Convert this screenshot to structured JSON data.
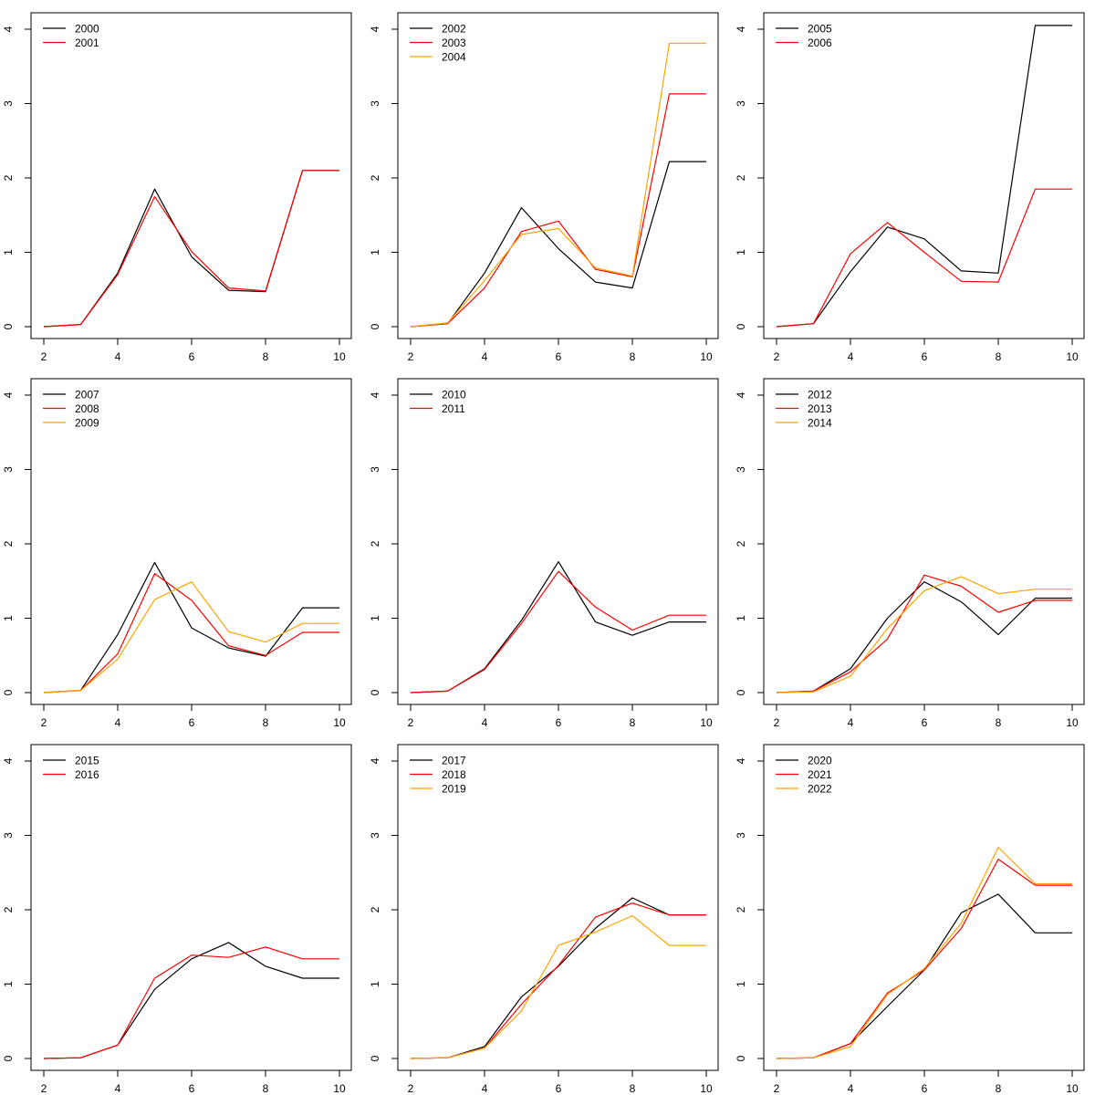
{
  "chart_data": [
    {
      "type": "line",
      "x": [
        2,
        3,
        4,
        5,
        6,
        7,
        8,
        9,
        10
      ],
      "xlim": [
        2,
        10
      ],
      "ylim": [
        0,
        4
      ],
      "xticks": [
        2,
        4,
        6,
        8,
        10
      ],
      "yticks": [
        0,
        1,
        2,
        3,
        4
      ],
      "legend_position": "top-left",
      "series": [
        {
          "name": "2000",
          "color": "#000000",
          "values": [
            0,
            0.03,
            0.72,
            1.85,
            0.94,
            0.49,
            0.47,
            2.1,
            2.1
          ]
        },
        {
          "name": "2001",
          "color": "#ff0000",
          "values": [
            0,
            0.03,
            0.7,
            1.75,
            1.01,
            0.52,
            0.48,
            2.1,
            2.1
          ]
        }
      ]
    },
    {
      "type": "line",
      "x": [
        2,
        3,
        4,
        5,
        6,
        7,
        8,
        9,
        10
      ],
      "xlim": [
        2,
        10
      ],
      "ylim": [
        0,
        4
      ],
      "xticks": [
        2,
        4,
        6,
        8,
        10
      ],
      "yticks": [
        0,
        1,
        2,
        3,
        4
      ],
      "legend_position": "top-left",
      "series": [
        {
          "name": "2002",
          "color": "#000000",
          "values": [
            0,
            0.04,
            0.72,
            1.6,
            1.05,
            0.6,
            0.52,
            2.22,
            2.22
          ]
        },
        {
          "name": "2003",
          "color": "#ff0000",
          "values": [
            0,
            0.04,
            0.52,
            1.28,
            1.42,
            0.77,
            0.67,
            3.13,
            3.13
          ]
        },
        {
          "name": "2004",
          "color": "#ffa500",
          "values": [
            0,
            0.05,
            0.62,
            1.24,
            1.32,
            0.79,
            0.68,
            3.81,
            3.81
          ]
        }
      ]
    },
    {
      "type": "line",
      "x": [
        2,
        3,
        4,
        5,
        6,
        7,
        8,
        9,
        10
      ],
      "xlim": [
        2,
        10
      ],
      "ylim": [
        0,
        4
      ],
      "xticks": [
        2,
        4,
        6,
        8,
        10
      ],
      "yticks": [
        0,
        1,
        2,
        3,
        4
      ],
      "legend_position": "top-left",
      "series": [
        {
          "name": "2005",
          "color": "#000000",
          "values": [
            0,
            0.04,
            0.74,
            1.34,
            1.18,
            0.75,
            0.72,
            4.05,
            4.05
          ]
        },
        {
          "name": "2006",
          "color": "#ff0000",
          "values": [
            0,
            0.04,
            0.98,
            1.4,
            1.0,
            0.61,
            0.6,
            1.85,
            1.85
          ]
        }
      ]
    },
    {
      "type": "line",
      "x": [
        2,
        3,
        4,
        5,
        6,
        7,
        8,
        9,
        10
      ],
      "xlim": [
        2,
        10
      ],
      "ylim": [
        0,
        4
      ],
      "xticks": [
        2,
        4,
        6,
        8,
        10
      ],
      "yticks": [
        0,
        1,
        2,
        3,
        4
      ],
      "legend_position": "top-left",
      "series": [
        {
          "name": "2007",
          "color": "#000000",
          "values": [
            0,
            0.03,
            0.78,
            1.75,
            0.87,
            0.6,
            0.49,
            1.14,
            1.14
          ]
        },
        {
          "name": "2008",
          "color": "#ff0000",
          "values": [
            0,
            0.03,
            0.52,
            1.6,
            1.24,
            0.63,
            0.5,
            0.81,
            0.81
          ]
        },
        {
          "name": "2009",
          "color": "#ffa500",
          "values": [
            0,
            0.03,
            0.45,
            1.25,
            1.49,
            0.82,
            0.68,
            0.93,
            0.93
          ]
        }
      ]
    },
    {
      "type": "line",
      "x": [
        2,
        3,
        4,
        5,
        6,
        7,
        8,
        9,
        10
      ],
      "xlim": [
        2,
        10
      ],
      "ylim": [
        0,
        4
      ],
      "xticks": [
        2,
        4,
        6,
        8,
        10
      ],
      "yticks": [
        0,
        1,
        2,
        3,
        4
      ],
      "legend_position": "top-left",
      "series": [
        {
          "name": "2010",
          "color": "#000000",
          "values": [
            0,
            0.02,
            0.32,
            0.97,
            1.76,
            0.95,
            0.77,
            0.95,
            0.95
          ]
        },
        {
          "name": "2011",
          "color": "#ff0000",
          "values": [
            0,
            0.02,
            0.31,
            0.93,
            1.63,
            1.15,
            0.84,
            1.04,
            1.04
          ]
        }
      ]
    },
    {
      "type": "line",
      "x": [
        2,
        3,
        4,
        5,
        6,
        7,
        8,
        9,
        10
      ],
      "xlim": [
        2,
        10
      ],
      "ylim": [
        0,
        4
      ],
      "xticks": [
        2,
        4,
        6,
        8,
        10
      ],
      "yticks": [
        0,
        1,
        2,
        3,
        4
      ],
      "legend_position": "top-left",
      "series": [
        {
          "name": "2012",
          "color": "#000000",
          "values": [
            0,
            0.02,
            0.32,
            1.0,
            1.49,
            1.22,
            0.78,
            1.27,
            1.27
          ]
        },
        {
          "name": "2013",
          "color": "#ff0000",
          "values": [
            0,
            0.02,
            0.28,
            0.72,
            1.58,
            1.43,
            1.08,
            1.24,
            1.24
          ]
        },
        {
          "name": "2014",
          "color": "#ffa500",
          "values": [
            0,
            0.01,
            0.22,
            0.86,
            1.37,
            1.56,
            1.33,
            1.39,
            1.39
          ]
        }
      ]
    },
    {
      "type": "line",
      "x": [
        2,
        3,
        4,
        5,
        6,
        7,
        8,
        9,
        10
      ],
      "xlim": [
        2,
        10
      ],
      "ylim": [
        0,
        4
      ],
      "xticks": [
        2,
        4,
        6,
        8,
        10
      ],
      "yticks": [
        0,
        1,
        2,
        3,
        4
      ],
      "legend_position": "top-left",
      "series": [
        {
          "name": "2015",
          "color": "#000000",
          "values": [
            0,
            0.01,
            0.18,
            0.93,
            1.34,
            1.56,
            1.24,
            1.08,
            1.08
          ]
        },
        {
          "name": "2016",
          "color": "#ff0000",
          "values": [
            0,
            0.01,
            0.18,
            1.08,
            1.39,
            1.36,
            1.5,
            1.34,
            1.34
          ]
        }
      ]
    },
    {
      "type": "line",
      "x": [
        2,
        3,
        4,
        5,
        6,
        7,
        8,
        9,
        10
      ],
      "xlim": [
        2,
        10
      ],
      "ylim": [
        0,
        4
      ],
      "xticks": [
        2,
        4,
        6,
        8,
        10
      ],
      "yticks": [
        0,
        1,
        2,
        3,
        4
      ],
      "legend_position": "top-left",
      "series": [
        {
          "name": "2017",
          "color": "#000000",
          "values": [
            0,
            0.01,
            0.16,
            0.83,
            1.24,
            1.75,
            2.16,
            1.93,
            1.93
          ]
        },
        {
          "name": "2018",
          "color": "#ff0000",
          "values": [
            0,
            0.01,
            0.14,
            0.73,
            1.25,
            1.9,
            2.09,
            1.93,
            1.93
          ]
        },
        {
          "name": "2019",
          "color": "#ffa500",
          "values": [
            0,
            0.01,
            0.14,
            0.64,
            1.52,
            1.7,
            1.92,
            1.52,
            1.52
          ]
        }
      ]
    },
    {
      "type": "line",
      "x": [
        2,
        3,
        4,
        5,
        6,
        7,
        8,
        9,
        10
      ],
      "xlim": [
        2,
        10
      ],
      "ylim": [
        0,
        4
      ],
      "xticks": [
        2,
        4,
        6,
        8,
        10
      ],
      "yticks": [
        0,
        1,
        2,
        3,
        4
      ],
      "legend_position": "top-left",
      "series": [
        {
          "name": "2020",
          "color": "#000000",
          "values": [
            0,
            0.01,
            0.2,
            0.7,
            1.19,
            1.96,
            2.21,
            1.69,
            1.69
          ]
        },
        {
          "name": "2021",
          "color": "#ff0000",
          "values": [
            0,
            0.01,
            0.2,
            0.88,
            1.19,
            1.75,
            2.68,
            2.33,
            2.33
          ]
        },
        {
          "name": "2022",
          "color": "#ffa500",
          "values": [
            0,
            0.01,
            0.16,
            0.86,
            1.21,
            1.82,
            2.84,
            2.35,
            2.35
          ]
        }
      ]
    }
  ]
}
